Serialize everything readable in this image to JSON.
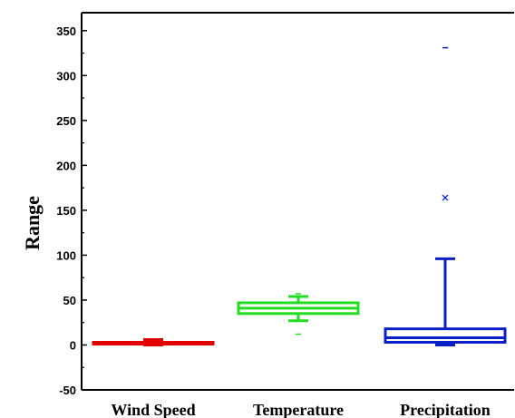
{
  "chart_data": {
    "type": "box",
    "title": "",
    "xlabel": "",
    "ylabel": "Range",
    "ylim": [
      -50,
      370
    ],
    "yticks": [
      -50,
      0,
      50,
      100,
      150,
      200,
      250,
      300,
      350
    ],
    "grid": false,
    "legend": "none",
    "categories": [
      "Wind Speed",
      "Temperature",
      "Precipitation"
    ],
    "boxes": [
      {
        "category": "Wind Speed",
        "color": "#e00000",
        "whisker_low": 0,
        "q1": 1,
        "median": 2,
        "q3": 3,
        "whisker_high": 6,
        "outliers": [],
        "extremes": []
      },
      {
        "category": "Temperature",
        "color": "#22dd22",
        "whisker_low": 27,
        "q1": 35,
        "median": 41,
        "q3": 47,
        "whisker_high": 54,
        "outliers": [],
        "extremes": [
          12,
          57
        ]
      },
      {
        "category": "Precipitation",
        "color": "#0a1fc8",
        "whisker_low": 0,
        "q1": 3,
        "median": 8,
        "q3": 18,
        "whisker_high": 96,
        "outliers": [
          164
        ],
        "extremes": [
          0,
          331
        ]
      }
    ]
  }
}
